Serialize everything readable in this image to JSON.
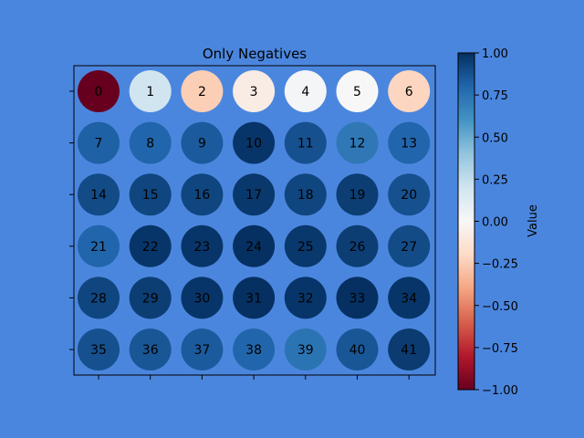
{
  "chart_data": {
    "type": "heatmap",
    "title": "Only Negatives",
    "rows": 6,
    "cols": 7,
    "labels": [
      0,
      1,
      2,
      3,
      4,
      5,
      6,
      7,
      8,
      9,
      10,
      11,
      12,
      13,
      14,
      15,
      16,
      17,
      18,
      19,
      20,
      21,
      22,
      23,
      24,
      25,
      26,
      27,
      28,
      29,
      30,
      31,
      32,
      33,
      34,
      35,
      36,
      37,
      38,
      39,
      40,
      41
    ],
    "values": [
      -1.0,
      0.2,
      -0.25,
      -0.08,
      0.02,
      0.0,
      -0.22,
      0.82,
      0.8,
      0.84,
      0.98,
      0.88,
      0.72,
      0.8,
      0.9,
      0.92,
      0.92,
      0.97,
      0.92,
      0.95,
      0.88,
      0.8,
      0.98,
      0.98,
      1.0,
      0.97,
      0.95,
      0.9,
      0.92,
      0.95,
      0.98,
      1.0,
      0.98,
      1.0,
      0.98,
      0.88,
      0.86,
      0.84,
      0.8,
      0.74,
      0.86,
      0.96
    ],
    "colorbar": {
      "label": "Value",
      "vmin": -1.0,
      "vmax": 1.0,
      "ticks": [
        1.0,
        0.75,
        0.5,
        0.25,
        0.0,
        -0.25,
        -0.5,
        -0.75,
        -1.0
      ],
      "tick_labels": [
        "1.00",
        "0.75",
        "0.50",
        "0.25",
        "0.00",
        "−0.25",
        "−0.50",
        "−0.75",
        "−1.00"
      ],
      "colormap": "RdBu"
    },
    "grid": false,
    "legend": "colorbar-right"
  }
}
